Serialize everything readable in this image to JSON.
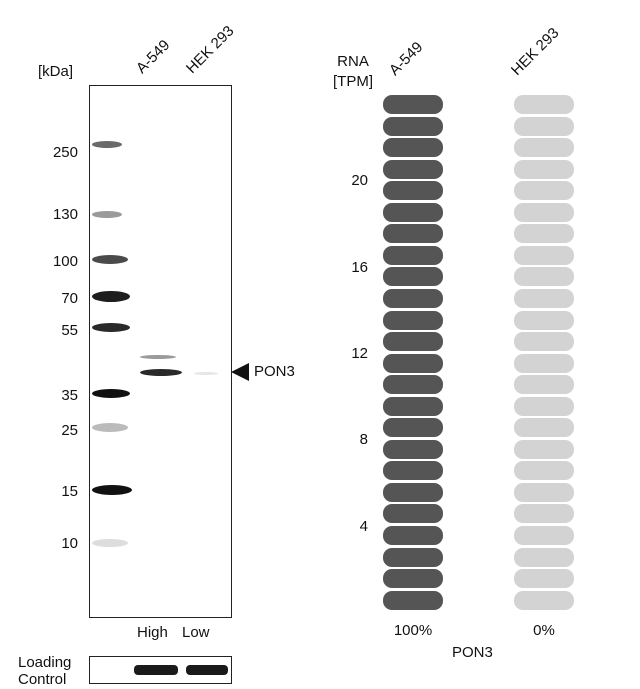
{
  "blot": {
    "unit_label": "[kDa]",
    "lanes": [
      "A-549",
      "HEK 293"
    ],
    "markers": [
      "250",
      "130",
      "100",
      "70",
      "55",
      "35",
      "25",
      "15",
      "10"
    ],
    "target_label": "PON3",
    "expression": [
      "High",
      "Low"
    ],
    "loading_control_line1": "Loading",
    "loading_control_line2": "Control"
  },
  "rna": {
    "header_line1": "RNA",
    "header_line2": "[TPM]",
    "samples": [
      "A-549",
      "HEK 293"
    ],
    "ticks": [
      "20",
      "16",
      "12",
      "8",
      "4"
    ],
    "percent_a549": "100%",
    "percent_hek": "0%",
    "gene": "PON3",
    "colors": {
      "filled": "#555555",
      "empty": "#d3d3d3"
    },
    "pill_count": 24
  }
}
